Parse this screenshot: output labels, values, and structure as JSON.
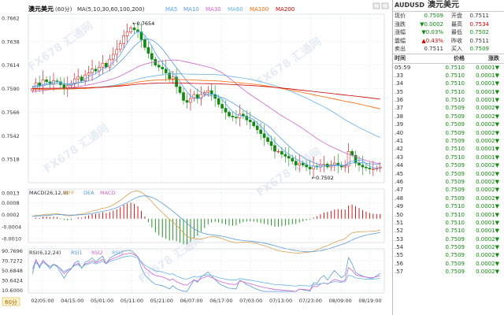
{
  "chart_data": [
    {
      "type": "candlestick",
      "title": "澳元美元",
      "period": "60分",
      "indicator_label": "MA(5,10,30,60,100,200)",
      "ma_legend": [
        {
          "name": "MA5",
          "color": "#4da6ff"
        },
        {
          "name": "MA10",
          "color": "#5b9bd5"
        },
        {
          "name": "MA30",
          "color": "#cc66cc"
        },
        {
          "name": "MA60",
          "color": "#66b3e6"
        },
        {
          "name": "MA100",
          "color": "#ff6600"
        },
        {
          "name": "MA200",
          "color": "#cc0000"
        }
      ],
      "y_ticks": [
        0.7662,
        0.7638,
        0.7614,
        0.759,
        0.7566,
        0.7542,
        0.7518
      ],
      "ylim": [
        0.7494,
        0.7666
      ],
      "x_ticks": [
        "02/05:00",
        "04/15:00",
        "05/01:00",
        "05/11:00",
        "05/21:00",
        "06/07:00",
        "06/17:00",
        "07/03:00",
        "07/13:00",
        "07/23:00",
        "08/09:00",
        "08/19:00"
      ],
      "annotations": [
        {
          "label": "0.7654",
          "value": 0.7654
        },
        {
          "label": "0.7502",
          "value": 0.7502
        }
      ],
      "close_series": [
        0.759,
        0.7596,
        0.7593,
        0.7599,
        0.7597,
        0.7595,
        0.7598,
        0.7597,
        0.7594,
        0.759,
        0.7593,
        0.7595,
        0.76,
        0.7602,
        0.7598,
        0.7604,
        0.7606,
        0.761,
        0.7608,
        0.7612,
        0.7616,
        0.7612,
        0.762,
        0.7625,
        0.763,
        0.7636,
        0.7644,
        0.7648,
        0.7652,
        0.765,
        0.7648,
        0.764,
        0.7632,
        0.7626,
        0.762,
        0.7614,
        0.7612,
        0.761,
        0.7606,
        0.76,
        0.7602,
        0.7592,
        0.7586,
        0.7578,
        0.7576,
        0.758,
        0.7584,
        0.758,
        0.7584,
        0.7586,
        0.7588,
        0.7584,
        0.758,
        0.7574,
        0.757,
        0.7566,
        0.7562,
        0.7561,
        0.756,
        0.7564,
        0.7562,
        0.7558,
        0.7556,
        0.7552,
        0.7548,
        0.7544,
        0.754,
        0.7536,
        0.7532,
        0.7526,
        0.7526,
        0.7523,
        0.7521,
        0.7519,
        0.7516,
        0.7512,
        0.7514,
        0.7512,
        0.751,
        0.7508,
        0.7511,
        0.751,
        0.7512,
        0.7513,
        0.751,
        0.7512,
        0.7514,
        0.7512,
        0.751,
        0.7511,
        0.7526,
        0.7522,
        0.7514,
        0.7512,
        0.751,
        0.7509,
        0.7508,
        0.7508,
        0.7509,
        0.751
      ]
    },
    {
      "type": "line",
      "title": "MACD(26,12,9)",
      "series_names": [
        "DIFF",
        "DEA",
        "MACD"
      ],
      "y_ticks": [
        0.0013,
        0.0008,
        0.0002,
        -0.0004,
        -0.001
      ],
      "ylim": [
        -0.0012,
        0.0015
      ]
    },
    {
      "type": "line",
      "title": "RSI(6,12,24)",
      "series_names": [
        "RSI1",
        "RSI2",
        "RSI3"
      ],
      "y_ticks": [
        90.7696,
        70.7272,
        50.6848,
        30.6424,
        10.6
      ],
      "ylim": [
        5,
        95
      ]
    }
  ],
  "side": {
    "symbol": "AUDUSD",
    "symbol_cn": "澳元美元",
    "quotes": [
      {
        "l1": "现价",
        "v1": "0.7509",
        "c1": "dn",
        "l2": "开盘",
        "v2": "0.7511",
        "c2": ""
      },
      {
        "l1": "涨跌",
        "v1": "▼0.0002",
        "c1": "dn",
        "l2": "最高",
        "v2": "0.7534",
        "c2": "up"
      },
      {
        "l1": "涨幅",
        "v1": "▼0.03%",
        "c1": "dn",
        "l2": "最低",
        "v2": "0.7502",
        "c2": "dn"
      },
      {
        "l1": "震幅",
        "v1": "▲0.43%",
        "c1": "up",
        "l2": "昨收",
        "v2": "0.7511",
        "c2": ""
      },
      {
        "l1": "卖出",
        "v1": "0.7511",
        "c1": "",
        "l2": "买入",
        "v2": "0.7509",
        "c2": "dn"
      }
    ],
    "tick_header": [
      "时间",
      "价格",
      "涨跌"
    ],
    "ticks": [
      [
        "05:59",
        "0.7510",
        "0.0001▼"
      ],
      [
        ".33",
        "0.7510",
        "0.0001▼"
      ],
      [
        ".34",
        "0.7510",
        "0.0001▼"
      ],
      [
        ".35",
        "0.7510",
        "0.0001▼"
      ],
      [
        ".36",
        "0.7510",
        "0.0001▼"
      ],
      [
        ".37",
        "0.7509",
        "0.0002▼"
      ],
      [
        ".38",
        "0.7509",
        "0.0002▼"
      ],
      [
        ".39",
        "0.7509",
        "0.0002▼"
      ],
      [
        ".40",
        "0.7509",
        "0.0002▼"
      ],
      [
        ".41",
        "0.7509",
        "0.0002▼"
      ],
      [
        ".42",
        "0.7510",
        "0.0001▼"
      ],
      [
        ".43",
        "0.7510",
        "0.0001▼"
      ],
      [
        ".44",
        "0.7509",
        "0.0002▼"
      ],
      [
        ".45",
        "0.7509",
        "0.0002▼"
      ],
      [
        ".46",
        "0.7509",
        "0.0002▼"
      ],
      [
        ".47",
        "0.7509",
        "0.0002▼"
      ],
      [
        ".48",
        "0.7509",
        "0.0002▼"
      ],
      [
        ".49",
        "0.7510",
        "0.0001▼"
      ],
      [
        ".50",
        "0.7510",
        "0.0001▼"
      ],
      [
        ".51",
        "0.7510",
        "0.0001▼"
      ],
      [
        ".52",
        "0.7510",
        "0.0001▼"
      ],
      [
        ".53",
        "0.7509",
        "0.0002▼"
      ],
      [
        ".54",
        "0.7509",
        "0.0002▼"
      ],
      [
        ".55",
        "0.7509",
        "0.0002▼"
      ],
      [
        ".56",
        "0.7509",
        "0.0002▼"
      ],
      [
        ".57",
        "0.7509",
        "0.0002▼"
      ]
    ]
  },
  "watermark": "FX678 汇通网",
  "colors": {
    "up": "#d40000",
    "down": "#118a11",
    "grid": "#dde3ea"
  }
}
